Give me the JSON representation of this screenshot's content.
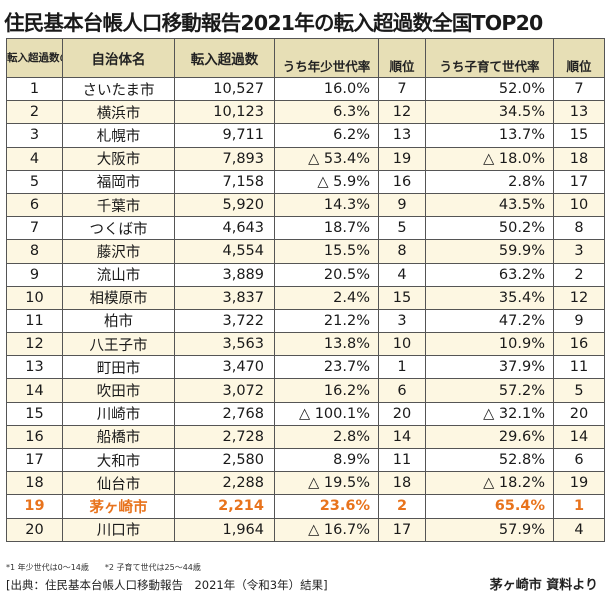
{
  "title": "住民基本台帳人口移動報告2021年の転入超過数全国TOP20",
  "headers": {
    "rank": "転入超過数の順位",
    "name": "自治体名",
    "net": "転入超過数",
    "young": "うち年少世代率",
    "young_rank": "順位",
    "child": "うち子育て世代率",
    "child_rank": "順位"
  },
  "rows": [
    {
      "rank": "1",
      "name": "さいたま市",
      "net": "10,527",
      "young": "16.0%",
      "young_rank": "7",
      "child": "52.0%",
      "child_rank": "7"
    },
    {
      "rank": "2",
      "name": "横浜市",
      "net": "10,123",
      "young": "6.3%",
      "young_rank": "12",
      "child": "34.5%",
      "child_rank": "13"
    },
    {
      "rank": "3",
      "name": "札幌市",
      "net": "9,711",
      "young": "6.2%",
      "young_rank": "13",
      "child": "13.7%",
      "child_rank": "15"
    },
    {
      "rank": "4",
      "name": "大阪市",
      "net": "7,893",
      "young": "△ 53.4%",
      "young_rank": "19",
      "child": "△ 18.0%",
      "child_rank": "18"
    },
    {
      "rank": "5",
      "name": "福岡市",
      "net": "7,158",
      "young": "△ 5.9%",
      "young_rank": "16",
      "child": "2.8%",
      "child_rank": "17"
    },
    {
      "rank": "6",
      "name": "千葉市",
      "net": "5,920",
      "young": "14.3%",
      "young_rank": "9",
      "child": "43.5%",
      "child_rank": "10"
    },
    {
      "rank": "7",
      "name": "つくば市",
      "net": "4,643",
      "young": "18.7%",
      "young_rank": "5",
      "child": "50.2%",
      "child_rank": "8"
    },
    {
      "rank": "8",
      "name": "藤沢市",
      "net": "4,554",
      "young": "15.5%",
      "young_rank": "8",
      "child": "59.9%",
      "child_rank": "3"
    },
    {
      "rank": "9",
      "name": "流山市",
      "net": "3,889",
      "young": "20.5%",
      "young_rank": "4",
      "child": "63.2%",
      "child_rank": "2"
    },
    {
      "rank": "10",
      "name": "相模原市",
      "net": "3,837",
      "young": "2.4%",
      "young_rank": "15",
      "child": "35.4%",
      "child_rank": "12"
    },
    {
      "rank": "11",
      "name": "柏市",
      "net": "3,722",
      "young": "21.2%",
      "young_rank": "3",
      "child": "47.2%",
      "child_rank": "9"
    },
    {
      "rank": "12",
      "name": "八王子市",
      "net": "3,563",
      "young": "13.8%",
      "young_rank": "10",
      "child": "10.9%",
      "child_rank": "16"
    },
    {
      "rank": "13",
      "name": "町田市",
      "net": "3,470",
      "young": "23.7%",
      "young_rank": "1",
      "child": "37.9%",
      "child_rank": "11"
    },
    {
      "rank": "14",
      "name": "吹田市",
      "net": "3,072",
      "young": "16.2%",
      "young_rank": "6",
      "child": "57.2%",
      "child_rank": "5"
    },
    {
      "rank": "15",
      "name": "川崎市",
      "net": "2,768",
      "young": "△ 100.1%",
      "young_rank": "20",
      "child": "△ 32.1%",
      "child_rank": "20"
    },
    {
      "rank": "16",
      "name": "船橋市",
      "net": "2,728",
      "young": "2.8%",
      "young_rank": "14",
      "child": "29.6%",
      "child_rank": "14"
    },
    {
      "rank": "17",
      "name": "大和市",
      "net": "2,580",
      "young": "8.9%",
      "young_rank": "11",
      "child": "52.8%",
      "child_rank": "6"
    },
    {
      "rank": "18",
      "name": "仙台市",
      "net": "2,288",
      "young": "△ 19.5%",
      "young_rank": "18",
      "child": "△ 18.2%",
      "child_rank": "19"
    },
    {
      "rank": "19",
      "name": "茅ヶ崎市",
      "net": "2,214",
      "young": "23.6%",
      "young_rank": "2",
      "child": "65.4%",
      "child_rank": "1",
      "highlight": true
    },
    {
      "rank": "20",
      "name": "川口市",
      "net": "1,964",
      "young": "△ 16.7%",
      "young_rank": "17",
      "child": "57.9%",
      "child_rank": "4"
    }
  ],
  "footnote": "*1 年少世代は0〜14歳　　*2 子育て世代は25〜44歳",
  "source": "[出典：住民基本台帳人口移動報告　2021年（令和3年）結果]",
  "credit": "茅ヶ崎市 資料より",
  "colors": {
    "header_bg": "#e7dfb6",
    "stripe": "#fdf7e2",
    "highlight": "#e8731c"
  }
}
